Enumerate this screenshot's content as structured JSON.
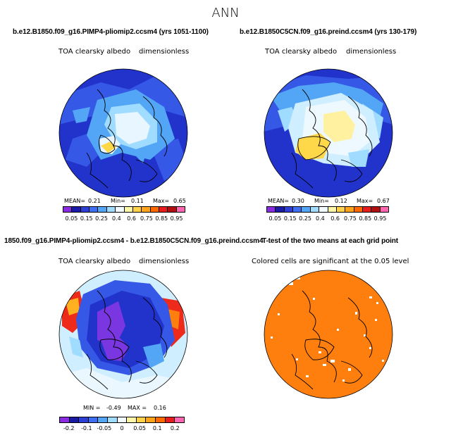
{
  "title": "ANN",
  "panels": [
    {
      "title": "b.e12.B1850.f09_g16.PIMP4-pliomip2.ccsm4 (yrs 1051-1100)",
      "variable": "TOA clearsky albedo",
      "units": "dimensionless",
      "stats": {
        "mean_label": "MEAN=",
        "mean": "0.21",
        "min_label": "Min=",
        "min": "0.11",
        "max_label": "Max=",
        "max": "0.65"
      },
      "colorbar": {
        "colors": [
          "#8a2be2",
          "#1a1aa6",
          "#2e3fd6",
          "#3f6ef0",
          "#52a6f5",
          "#9fdcff",
          "#f2fbff",
          "#fff7a8",
          "#ffd24a",
          "#ffa31a",
          "#ff6a00",
          "#e81c1c",
          "#b01010",
          "#ff66b2"
        ],
        "ticks": [
          "0.05",
          "0.15",
          "0.25",
          "0.4",
          "0.6",
          "0.75",
          "0.85",
          "0.95"
        ]
      }
    },
    {
      "title": "b.e12.B1850C5CN.f09_g16.preind.ccsm4 (yrs 130-179)",
      "variable": "TOA clearsky albedo",
      "units": "dimensionless",
      "stats": {
        "mean_label": "MEAN=",
        "mean": "0.30",
        "min_label": "Min=",
        "min": "0.12",
        "max_label": "Max=",
        "max": "0.67"
      },
      "colorbar": {
        "colors": [
          "#8a2be2",
          "#1a1aa6",
          "#2e3fd6",
          "#3f6ef0",
          "#52a6f5",
          "#9fdcff",
          "#f2fbff",
          "#fff7a8",
          "#ffd24a",
          "#ffa31a",
          "#ff6a00",
          "#e81c1c",
          "#b01010",
          "#ff66b2"
        ],
        "ticks": [
          "0.05",
          "0.15",
          "0.25",
          "0.4",
          "0.6",
          "0.75",
          "0.85",
          "0.95"
        ]
      }
    },
    {
      "title": "1850.f09_g16.PIMP4-pliomip2.ccsm4 - b.e12.B1850C5CN.f09_g16.preind.ccsm4",
      "variable": "TOA clearsky albedo",
      "units": "dimensionless",
      "stats": {
        "min_label": "MIN =",
        "min": "-0.49",
        "max_label": "MAX =",
        "max": "0.16"
      },
      "colorbar": {
        "colors": [
          "#8a2be2",
          "#1a1aa6",
          "#2e3fd6",
          "#3f6ef0",
          "#52a6f5",
          "#9fdcff",
          "#f2fbff",
          "#fff7a8",
          "#ffd24a",
          "#ffa31a",
          "#ff6a00",
          "#e81c1c",
          "#ff66b2"
        ],
        "ticks": [
          "-0.2",
          "-0.1",
          "-0.05",
          "0",
          "0.05",
          "0.1",
          "0.2"
        ]
      }
    },
    {
      "title": "T-test of the two means at each grid point",
      "variable": "Colored cells are significant at the 0.05 level"
    }
  ],
  "colors": {
    "deep_blue": "#1f2bd0",
    "mid_blue": "#3a55e8",
    "light_blue": "#9fd8ff",
    "pale": "#eaf7ff",
    "yellow": "#fff1a0",
    "gold": "#ffd84a",
    "purple": "#7a36e0",
    "orange": "#ff7f0e",
    "red": "#ee2a1a"
  }
}
